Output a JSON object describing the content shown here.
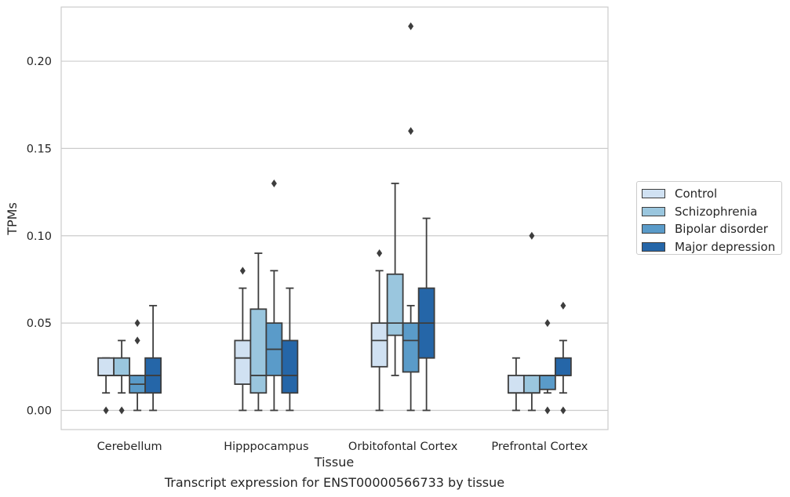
{
  "caption": "Transcript expression for ENST00000566733 by tissue",
  "chart_data": {
    "type": "boxplot",
    "xlabel": "Tissue",
    "ylabel": "TPMs",
    "ylim": [
      -0.011,
      0.231
    ],
    "yticks": [
      "0.00",
      "0.05",
      "0.10",
      "0.15",
      "0.20"
    ],
    "ytick_values": [
      0.0,
      0.05,
      0.1,
      0.15,
      0.2
    ],
    "grid": true,
    "legend_placement": "right, outside",
    "categories": [
      "Cerebellum",
      "Hipppocampus",
      "Orbitofontal Cortex",
      "Prefrontal Cortex"
    ],
    "series": [
      {
        "name": "Control",
        "color": "#d0e1f2",
        "boxes": [
          {
            "q1": 0.02,
            "median": 0.02,
            "q3": 0.03,
            "whisker_low": 0.01,
            "whisker_high": 0.03,
            "outliers": [
              0.0
            ]
          },
          {
            "q1": 0.015,
            "median": 0.03,
            "q3": 0.04,
            "whisker_low": 0.0,
            "whisker_high": 0.07,
            "outliers": [
              0.08
            ]
          },
          {
            "q1": 0.025,
            "median": 0.04,
            "q3": 0.05,
            "whisker_low": 0.0,
            "whisker_high": 0.08,
            "outliers": [
              0.09
            ]
          },
          {
            "q1": 0.01,
            "median": 0.01,
            "q3": 0.02,
            "whisker_low": 0.0,
            "whisker_high": 0.03,
            "outliers": []
          }
        ]
      },
      {
        "name": "Schizophrenia",
        "color": "#9ac6de",
        "boxes": [
          {
            "q1": 0.02,
            "median": 0.02,
            "q3": 0.03,
            "whisker_low": 0.01,
            "whisker_high": 0.04,
            "outliers": [
              0.0
            ]
          },
          {
            "q1": 0.01,
            "median": 0.02,
            "q3": 0.058,
            "whisker_low": 0.0,
            "whisker_high": 0.09,
            "outliers": []
          },
          {
            "q1": 0.043,
            "median": 0.05,
            "q3": 0.078,
            "whisker_low": 0.02,
            "whisker_high": 0.13,
            "outliers": []
          },
          {
            "q1": 0.01,
            "median": 0.01,
            "q3": 0.02,
            "whisker_low": 0.0,
            "whisker_high": 0.02,
            "outliers": [
              0.1
            ]
          }
        ]
      },
      {
        "name": "Bipolar disorder",
        "color": "#5a9bc9",
        "boxes": [
          {
            "q1": 0.01,
            "median": 0.015,
            "q3": 0.02,
            "whisker_low": 0.0,
            "whisker_high": 0.02,
            "outliers": [
              0.04,
              0.05
            ]
          },
          {
            "q1": 0.02,
            "median": 0.035,
            "q3": 0.05,
            "whisker_low": 0.0,
            "whisker_high": 0.08,
            "outliers": [
              0.13
            ]
          },
          {
            "q1": 0.022,
            "median": 0.04,
            "q3": 0.05,
            "whisker_low": 0.0,
            "whisker_high": 0.06,
            "outliers": [
              0.16,
              0.22
            ]
          },
          {
            "q1": 0.012,
            "median": 0.02,
            "q3": 0.02,
            "whisker_low": 0.01,
            "whisker_high": 0.02,
            "outliers": [
              0.0,
              0.05
            ]
          }
        ]
      },
      {
        "name": "Major depression",
        "color": "#2566a8",
        "boxes": [
          {
            "q1": 0.01,
            "median": 0.02,
            "q3": 0.03,
            "whisker_low": 0.0,
            "whisker_high": 0.06,
            "outliers": []
          },
          {
            "q1": 0.01,
            "median": 0.02,
            "q3": 0.04,
            "whisker_low": 0.0,
            "whisker_high": 0.07,
            "outliers": []
          },
          {
            "q1": 0.03,
            "median": 0.05,
            "q3": 0.07,
            "whisker_low": 0.0,
            "whisker_high": 0.11,
            "outliers": []
          },
          {
            "q1": 0.02,
            "median": 0.02,
            "q3": 0.03,
            "whisker_low": 0.01,
            "whisker_high": 0.04,
            "outliers": [
              0.0,
              0.06
            ]
          }
        ]
      }
    ]
  }
}
